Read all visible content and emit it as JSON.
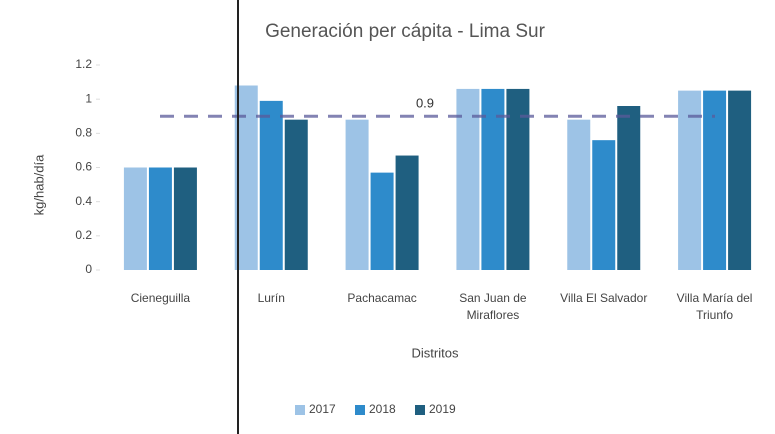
{
  "chart_data": {
    "type": "bar",
    "title": "Generación per cápita - Lima Sur",
    "y_label": "kg/hab/día",
    "x_label": "Distritos",
    "categories": [
      "Cieneguilla",
      "Lurín",
      "Pachacamac",
      "San Juan de Miraflores",
      "Villa El Salvador",
      "Villa María del Triunfo"
    ],
    "series": [
      {
        "name": "2017",
        "color": "#9dc3e6",
        "values": [
          0.6,
          1.08,
          0.88,
          1.06,
          0.88,
          1.05
        ]
      },
      {
        "name": "2018",
        "color": "#2e8bcb",
        "values": [
          0.6,
          0.99,
          0.57,
          1.06,
          0.76,
          1.05
        ]
      },
      {
        "name": "2019",
        "color": "#1f5f80",
        "values": [
          0.6,
          0.88,
          0.67,
          1.06,
          0.96,
          1.05
        ]
      }
    ],
    "reference_line": 0.9,
    "ylim": [
      0,
      1.2
    ],
    "yticks": [
      0,
      0.2,
      0.4,
      0.6,
      0.8,
      1,
      1.2
    ],
    "legend": "bottom"
  }
}
